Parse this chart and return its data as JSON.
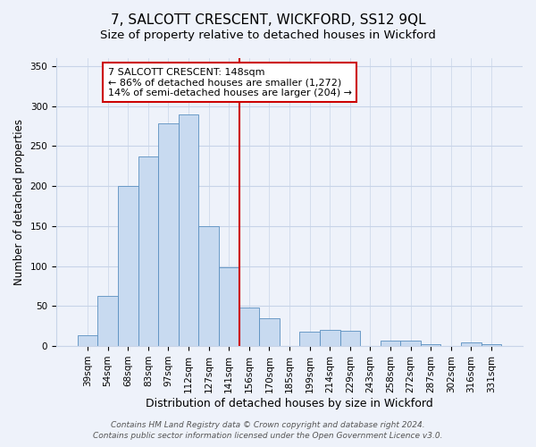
{
  "title": "7, SALCOTT CRESCENT, WICKFORD, SS12 9QL",
  "subtitle": "Size of property relative to detached houses in Wickford",
  "xlabel": "Distribution of detached houses by size in Wickford",
  "ylabel": "Number of detached properties",
  "bar_labels": [
    "39sqm",
    "54sqm",
    "68sqm",
    "83sqm",
    "97sqm",
    "112sqm",
    "127sqm",
    "141sqm",
    "156sqm",
    "170sqm",
    "185sqm",
    "199sqm",
    "214sqm",
    "229sqm",
    "243sqm",
    "258sqm",
    "272sqm",
    "287sqm",
    "302sqm",
    "316sqm",
    "331sqm"
  ],
  "bar_values": [
    13,
    63,
    200,
    237,
    278,
    290,
    150,
    99,
    48,
    35,
    0,
    18,
    20,
    19,
    0,
    7,
    7,
    2,
    0,
    5,
    2
  ],
  "bar_color": "#c8daf0",
  "bar_edge_color": "#5a8fc0",
  "vline_x": 7.5,
  "vline_color": "#cc0000",
  "annotation_title": "7 SALCOTT CRESCENT: 148sqm",
  "annotation_line1": "← 86% of detached houses are smaller (1,272)",
  "annotation_line2": "14% of semi-detached houses are larger (204) →",
  "annotation_box_facecolor": "#ffffff",
  "annotation_box_edgecolor": "#cc0000",
  "ylim": [
    0,
    360
  ],
  "yticks": [
    0,
    50,
    100,
    150,
    200,
    250,
    300,
    350
  ],
  "footer1": "Contains HM Land Registry data © Crown copyright and database right 2024.",
  "footer2": "Contains public sector information licensed under the Open Government Licence v3.0.",
  "bg_color": "#eef2fa",
  "grid_color": "#c8d4e8",
  "title_fontsize": 11,
  "subtitle_fontsize": 9.5,
  "xlabel_fontsize": 9,
  "ylabel_fontsize": 8.5,
  "tick_fontsize": 7.5,
  "annotation_fontsize": 8,
  "footer_fontsize": 6.5
}
